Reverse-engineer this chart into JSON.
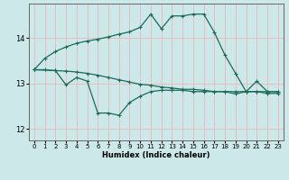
{
  "xlabel": "Humidex (Indice chaleur)",
  "bg_color": "#cce8e8",
  "grid_color": "#e8b8b8",
  "line_color": "#1a6b5a",
  "xlim": [
    -0.5,
    23.5
  ],
  "ylim": [
    11.75,
    14.75
  ],
  "yticks": [
    12,
    13,
    14
  ],
  "xticks": [
    0,
    1,
    2,
    3,
    4,
    5,
    6,
    7,
    8,
    9,
    10,
    11,
    12,
    13,
    14,
    15,
    16,
    17,
    18,
    19,
    20,
    21,
    22,
    23
  ],
  "series": {
    "max": {
      "x": [
        0,
        1,
        2,
        3,
        4,
        5,
        6,
        7,
        8,
        9,
        10,
        11,
        12,
        13,
        14,
        15,
        16,
        17,
        18,
        19,
        20,
        21,
        22,
        23
      ],
      "y": [
        13.3,
        13.55,
        13.7,
        13.8,
        13.88,
        13.93,
        13.97,
        14.02,
        14.08,
        14.13,
        14.23,
        14.52,
        14.2,
        14.48,
        14.48,
        14.52,
        14.52,
        14.12,
        13.62,
        13.22,
        12.82,
        12.82,
        12.78,
        12.78
      ]
    },
    "mean": {
      "x": [
        0,
        1,
        2,
        3,
        4,
        5,
        6,
        7,
        8,
        9,
        10,
        11,
        12,
        13,
        14,
        15,
        16,
        17,
        18,
        19,
        20,
        21,
        22,
        23
      ],
      "y": [
        13.3,
        13.3,
        13.28,
        13.27,
        13.25,
        13.22,
        13.18,
        13.13,
        13.08,
        13.03,
        12.98,
        12.96,
        12.92,
        12.9,
        12.87,
        12.87,
        12.85,
        12.82,
        12.82,
        12.82,
        12.82,
        12.82,
        12.82,
        12.82
      ]
    },
    "min": {
      "x": [
        0,
        2,
        3,
        4,
        5,
        6,
        7,
        8,
        9,
        10,
        11,
        12,
        13,
        14,
        15,
        16,
        17,
        18,
        19,
        20,
        21,
        22,
        23
      ],
      "y": [
        13.3,
        13.28,
        12.97,
        13.13,
        13.05,
        12.35,
        12.35,
        12.3,
        12.58,
        12.72,
        12.82,
        12.85,
        12.85,
        12.85,
        12.82,
        12.82,
        12.82,
        12.82,
        12.77,
        12.82,
        13.05,
        12.82,
        12.82
      ]
    }
  }
}
